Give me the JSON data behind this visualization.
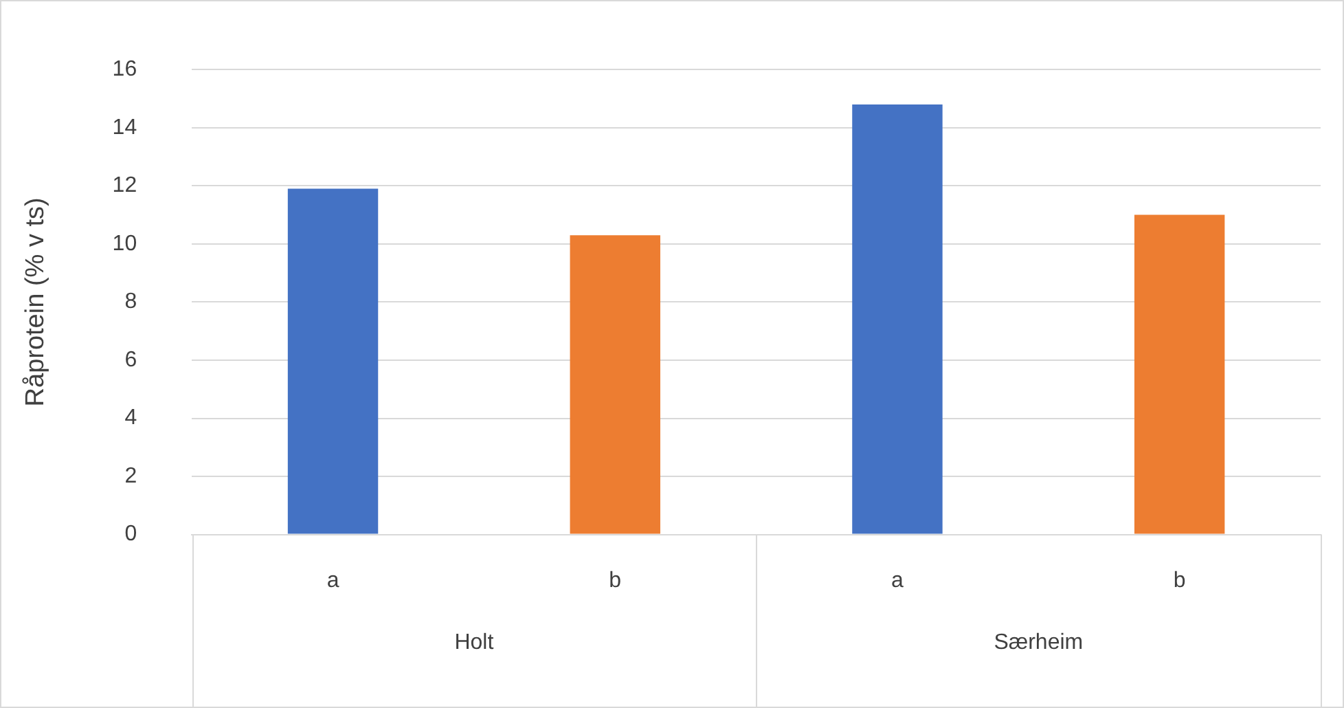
{
  "chart_data": {
    "type": "bar",
    "ylabel": "Råprotein (% v ts)",
    "categories": [
      "a",
      "b",
      "a",
      "b"
    ],
    "values": [
      11.9,
      10.3,
      14.8,
      11.0
    ],
    "colors": [
      "#4472c4",
      "#ed7d31",
      "#4472c4",
      "#ed7d31"
    ],
    "ylim": [
      0,
      16
    ],
    "yticks": [
      0,
      2,
      4,
      6,
      8,
      10,
      12,
      14,
      16
    ],
    "grid": "y",
    "legend": false,
    "annotations": [
      "Holt",
      "Særheim"
    ]
  }
}
